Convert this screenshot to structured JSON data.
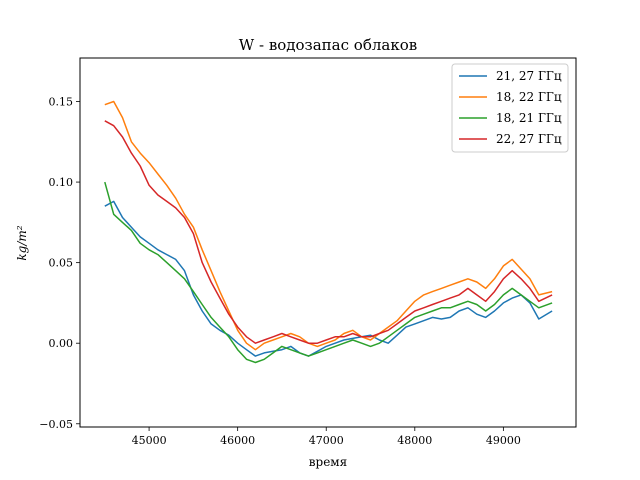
{
  "chart_data": {
    "type": "line",
    "title": "W - водозапас облаков",
    "xlabel": "время",
    "ylabel": "kg/m²",
    "xlim": [
      44220,
      49820
    ],
    "ylim": [
      -0.052,
      0.177
    ],
    "x_ticks": [
      {
        "value": 45000,
        "label": "45000"
      },
      {
        "value": 46000,
        "label": "46000"
      },
      {
        "value": 47000,
        "label": "47000"
      },
      {
        "value": 48000,
        "label": "48000"
      },
      {
        "value": 49000,
        "label": "49000"
      }
    ],
    "y_ticks": [
      {
        "value": 0.15,
        "label": "0.15"
      },
      {
        "value": 0.1,
        "label": "0.10"
      },
      {
        "value": 0.05,
        "label": "0.05"
      },
      {
        "value": 0.0,
        "label": "0.00"
      },
      {
        "value": -0.05,
        "label": "−0.05"
      }
    ],
    "grid": false,
    "legend_position": "top-right",
    "series": [
      {
        "name": "21, 27 ГГц",
        "color": "#1f77b4",
        "x": [
          44500,
          44600,
          44700,
          44800,
          44900,
          45000,
          45100,
          45200,
          45300,
          45400,
          45500,
          45600,
          45700,
          45800,
          45900,
          46000,
          46100,
          46200,
          46300,
          46400,
          46500,
          46600,
          46700,
          46800,
          46900,
          47000,
          47100,
          47200,
          47300,
          47400,
          47500,
          47600,
          47700,
          47800,
          47900,
          48000,
          48100,
          48200,
          48300,
          48400,
          48500,
          48600,
          48700,
          48800,
          48900,
          49000,
          49100,
          49200,
          49300,
          49400,
          49550
        ],
        "y": [
          0.085,
          0.088,
          0.078,
          0.072,
          0.066,
          0.062,
          0.058,
          0.055,
          0.052,
          0.045,
          0.03,
          0.02,
          0.012,
          0.008,
          0.005,
          0.0,
          -0.004,
          -0.008,
          -0.006,
          -0.005,
          -0.004,
          -0.002,
          -0.006,
          -0.008,
          -0.005,
          -0.002,
          0.0,
          0.002,
          0.003,
          0.004,
          0.005,
          0.002,
          0.0,
          0.005,
          0.01,
          0.012,
          0.014,
          0.016,
          0.015,
          0.016,
          0.02,
          0.022,
          0.018,
          0.016,
          0.02,
          0.025,
          0.028,
          0.03,
          0.025,
          0.015,
          0.02
        ]
      },
      {
        "name": "18, 22 ГГц",
        "color": "#ff7f0e",
        "x": [
          44500,
          44600,
          44700,
          44800,
          44900,
          45000,
          45100,
          45200,
          45300,
          45400,
          45500,
          45600,
          45700,
          45800,
          45900,
          46000,
          46100,
          46200,
          46300,
          46400,
          46500,
          46600,
          46700,
          46800,
          46900,
          47000,
          47100,
          47200,
          47300,
          47400,
          47500,
          47600,
          47700,
          47800,
          47900,
          48000,
          48100,
          48200,
          48300,
          48400,
          48500,
          48600,
          48700,
          48800,
          48900,
          49000,
          49100,
          49200,
          49300,
          49400,
          49550
        ],
        "y": [
          0.148,
          0.15,
          0.14,
          0.125,
          0.118,
          0.112,
          0.105,
          0.098,
          0.09,
          0.08,
          0.072,
          0.058,
          0.045,
          0.032,
          0.02,
          0.008,
          0.0,
          -0.004,
          0.0,
          0.002,
          0.004,
          0.006,
          0.004,
          0.0,
          -0.002,
          0.0,
          0.002,
          0.006,
          0.008,
          0.004,
          0.002,
          0.006,
          0.01,
          0.014,
          0.02,
          0.026,
          0.03,
          0.032,
          0.034,
          0.036,
          0.038,
          0.04,
          0.038,
          0.034,
          0.04,
          0.048,
          0.052,
          0.046,
          0.04,
          0.03,
          0.032
        ]
      },
      {
        "name": "18, 21 ГГц",
        "color": "#2ca02c",
        "x": [
          44500,
          44600,
          44700,
          44800,
          44900,
          45000,
          45100,
          45200,
          45300,
          45400,
          45500,
          45600,
          45700,
          45800,
          45900,
          46000,
          46100,
          46200,
          46300,
          46400,
          46500,
          46600,
          46700,
          46800,
          46900,
          47000,
          47100,
          47200,
          47300,
          47400,
          47500,
          47600,
          47700,
          47800,
          47900,
          48000,
          48100,
          48200,
          48300,
          48400,
          48500,
          48600,
          48700,
          48800,
          48900,
          49000,
          49100,
          49200,
          49300,
          49400,
          49550
        ],
        "y": [
          0.1,
          0.08,
          0.075,
          0.07,
          0.062,
          0.058,
          0.055,
          0.05,
          0.045,
          0.04,
          0.032,
          0.024,
          0.016,
          0.01,
          0.004,
          -0.004,
          -0.01,
          -0.012,
          -0.01,
          -0.006,
          -0.002,
          -0.004,
          -0.006,
          -0.008,
          -0.006,
          -0.004,
          -0.002,
          0.0,
          0.002,
          0.0,
          -0.002,
          0.0,
          0.004,
          0.008,
          0.012,
          0.016,
          0.018,
          0.02,
          0.022,
          0.022,
          0.024,
          0.026,
          0.024,
          0.02,
          0.024,
          0.03,
          0.034,
          0.03,
          0.026,
          0.022,
          0.025
        ]
      },
      {
        "name": "22, 27 ГГц",
        "color": "#d62728",
        "x": [
          44500,
          44600,
          44700,
          44800,
          44900,
          45000,
          45100,
          45200,
          45300,
          45400,
          45500,
          45600,
          45700,
          45800,
          45900,
          46000,
          46100,
          46200,
          46300,
          46400,
          46500,
          46600,
          46700,
          46800,
          46900,
          47000,
          47100,
          47200,
          47300,
          47400,
          47500,
          47600,
          47700,
          47800,
          47900,
          48000,
          48100,
          48200,
          48300,
          48400,
          48500,
          48600,
          48700,
          48800,
          48900,
          49000,
          49100,
          49200,
          49300,
          49400,
          49550
        ],
        "y": [
          0.138,
          0.135,
          0.128,
          0.118,
          0.11,
          0.098,
          0.092,
          0.088,
          0.084,
          0.078,
          0.068,
          0.05,
          0.038,
          0.028,
          0.018,
          0.01,
          0.004,
          0.0,
          0.002,
          0.004,
          0.006,
          0.004,
          0.002,
          0.0,
          0.0,
          0.002,
          0.004,
          0.004,
          0.006,
          0.004,
          0.004,
          0.006,
          0.008,
          0.012,
          0.016,
          0.02,
          0.022,
          0.024,
          0.026,
          0.028,
          0.03,
          0.034,
          0.03,
          0.026,
          0.032,
          0.04,
          0.045,
          0.04,
          0.034,
          0.026,
          0.03
        ]
      }
    ]
  }
}
